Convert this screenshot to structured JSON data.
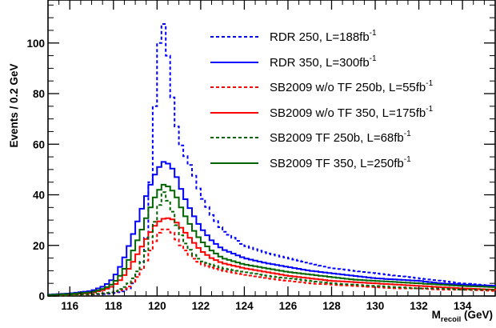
{
  "chart_data": {
    "type": "line",
    "xlabel": {
      "main": "M",
      "sub": "recoil",
      "unit": " (GeV)"
    },
    "ylabel": "Events / 0.2 GeV",
    "xlim": [
      115,
      135.5
    ],
    "ylim": [
      0,
      117
    ],
    "x_ticks": [
      116,
      118,
      120,
      122,
      124,
      126,
      128,
      130,
      132,
      134
    ],
    "y_ticks": [
      0,
      20,
      40,
      60,
      80,
      100
    ],
    "bin_width": 0.2,
    "legend_position": "top-right",
    "series": [
      {
        "name": "RDR 250, L=188fb",
        "sup": "-1",
        "color": "#0000ff",
        "dashed": true,
        "points": [
          [
            115,
            0
          ],
          [
            116,
            0.3
          ],
          [
            117,
            0.5
          ],
          [
            118,
            1
          ],
          [
            118.6,
            2
          ],
          [
            119,
            6
          ],
          [
            119.4,
            16
          ],
          [
            119.6,
            30
          ],
          [
            119.8,
            60
          ],
          [
            120,
            90
          ],
          [
            120.2,
            110
          ],
          [
            120.4,
            105
          ],
          [
            120.6,
            85
          ],
          [
            120.8,
            72
          ],
          [
            121,
            62
          ],
          [
            121.2,
            57
          ],
          [
            121.6,
            50
          ],
          [
            122,
            40
          ],
          [
            122.5,
            32
          ],
          [
            123,
            26
          ],
          [
            124,
            20
          ],
          [
            125,
            17
          ],
          [
            126,
            15
          ],
          [
            127,
            13
          ],
          [
            128,
            11
          ],
          [
            129,
            10
          ],
          [
            130,
            9
          ],
          [
            131,
            8
          ],
          [
            132,
            7
          ],
          [
            133,
            6
          ],
          [
            134,
            5
          ],
          [
            135.5,
            4
          ]
        ]
      },
      {
        "name": "RDR 350, L=300fb",
        "sup": "-1",
        "color": "#0000ff",
        "dashed": false,
        "points": [
          [
            115,
            0.5
          ],
          [
            116,
            1
          ],
          [
            117,
            2
          ],
          [
            117.6,
            4
          ],
          [
            118,
            7
          ],
          [
            118.4,
            13
          ],
          [
            118.8,
            22
          ],
          [
            119.2,
            32
          ],
          [
            119.6,
            42
          ],
          [
            120,
            50
          ],
          [
            120.3,
            53
          ],
          [
            120.6,
            52
          ],
          [
            120.9,
            47
          ],
          [
            121.2,
            40
          ],
          [
            121.6,
            33
          ],
          [
            122,
            27
          ],
          [
            122.5,
            22
          ],
          [
            123,
            18.5
          ],
          [
            124,
            15
          ],
          [
            125,
            13
          ],
          [
            126,
            11.5
          ],
          [
            127,
            10
          ],
          [
            128,
            9
          ],
          [
            129,
            8
          ],
          [
            130,
            7
          ],
          [
            131,
            6.5
          ],
          [
            132,
            6
          ],
          [
            133,
            5
          ],
          [
            134,
            4.5
          ],
          [
            135.5,
            4
          ]
        ]
      },
      {
        "name": "SB2009 w/o TF 250b, L=55fb",
        "sup": "-1",
        "color": "#ff0000",
        "dashed": true,
        "points": [
          [
            115,
            0
          ],
          [
            116,
            0.3
          ],
          [
            117,
            0.5
          ],
          [
            118,
            1.5
          ],
          [
            118.6,
            3
          ],
          [
            119,
            6
          ],
          [
            119.4,
            12
          ],
          [
            119.8,
            20
          ],
          [
            120.1,
            25
          ],
          [
            120.4,
            27
          ],
          [
            120.7,
            25
          ],
          [
            121,
            21
          ],
          [
            121.4,
            17
          ],
          [
            121.8,
            14
          ],
          [
            122.2,
            12
          ],
          [
            123,
            10
          ],
          [
            124,
            8.5
          ],
          [
            125,
            7
          ],
          [
            126,
            6
          ],
          [
            127,
            5
          ],
          [
            128,
            4.5
          ],
          [
            129,
            4
          ],
          [
            130,
            3.5
          ],
          [
            131,
            3
          ],
          [
            132,
            3
          ],
          [
            133,
            2.5
          ],
          [
            134,
            2.5
          ],
          [
            135.5,
            2
          ]
        ]
      },
      {
        "name": "SB2009 w/o TF 350, L=175fb",
        "sup": "-1",
        "color": "#ff0000",
        "dashed": false,
        "points": [
          [
            115,
            0.3
          ],
          [
            116,
            0.6
          ],
          [
            117,
            1.2
          ],
          [
            117.6,
            2.5
          ],
          [
            118,
            4
          ],
          [
            118.4,
            7
          ],
          [
            118.8,
            12
          ],
          [
            119.2,
            18
          ],
          [
            119.6,
            24
          ],
          [
            120,
            29
          ],
          [
            120.4,
            31
          ],
          [
            120.8,
            30
          ],
          [
            121.2,
            26
          ],
          [
            121.6,
            22
          ],
          [
            122,
            18
          ],
          [
            122.5,
            15
          ],
          [
            123,
            13
          ],
          [
            124,
            11
          ],
          [
            125,
            9.5
          ],
          [
            126,
            8
          ],
          [
            127,
            7
          ],
          [
            128,
            6
          ],
          [
            129,
            5.5
          ],
          [
            130,
            5
          ],
          [
            131,
            4.5
          ],
          [
            132,
            4
          ],
          [
            133,
            3.5
          ],
          [
            134,
            3
          ],
          [
            135.5,
            2.5
          ]
        ]
      },
      {
        "name": "SB2009 TF 250b, L=68fb",
        "sup": "-1",
        "color": "#006400",
        "dashed": true,
        "points": [
          [
            115,
            0
          ],
          [
            116,
            0.3
          ],
          [
            117,
            0.6
          ],
          [
            118,
            1.5
          ],
          [
            118.6,
            4
          ],
          [
            119,
            8
          ],
          [
            119.4,
            15
          ],
          [
            119.8,
            26
          ],
          [
            120.1,
            36
          ],
          [
            120.3,
            41
          ],
          [
            120.6,
            36
          ],
          [
            120.9,
            28
          ],
          [
            121.2,
            22
          ],
          [
            121.6,
            17
          ],
          [
            122,
            14
          ],
          [
            123,
            11
          ],
          [
            124,
            9.5
          ],
          [
            125,
            8
          ],
          [
            126,
            7
          ],
          [
            127,
            6
          ],
          [
            128,
            5
          ],
          [
            129,
            4.5
          ],
          [
            130,
            4
          ],
          [
            131,
            3.5
          ],
          [
            132,
            3
          ],
          [
            133,
            3
          ],
          [
            134,
            2.5
          ],
          [
            135.5,
            2.5
          ]
        ]
      },
      {
        "name": "SB2009 TF 350, L=250fb",
        "sup": "-1",
        "color": "#006400",
        "dashed": false,
        "points": [
          [
            115,
            0.4
          ],
          [
            116,
            0.8
          ],
          [
            117,
            1.5
          ],
          [
            117.6,
            3
          ],
          [
            118,
            5
          ],
          [
            118.4,
            9
          ],
          [
            118.8,
            16
          ],
          [
            119.2,
            24
          ],
          [
            119.6,
            33
          ],
          [
            120,
            41
          ],
          [
            120.3,
            44
          ],
          [
            120.6,
            43
          ],
          [
            120.9,
            39
          ],
          [
            121.2,
            33
          ],
          [
            121.6,
            27
          ],
          [
            122,
            22
          ],
          [
            122.5,
            18
          ],
          [
            123,
            15
          ],
          [
            124,
            12.5
          ],
          [
            125,
            11
          ],
          [
            126,
            9.5
          ],
          [
            127,
            8.5
          ],
          [
            128,
            7.5
          ],
          [
            129,
            6.5
          ],
          [
            130,
            6
          ],
          [
            131,
            5.5
          ],
          [
            132,
            5
          ],
          [
            133,
            4.5
          ],
          [
            134,
            4
          ],
          [
            135.5,
            3.5
          ]
        ]
      }
    ]
  }
}
